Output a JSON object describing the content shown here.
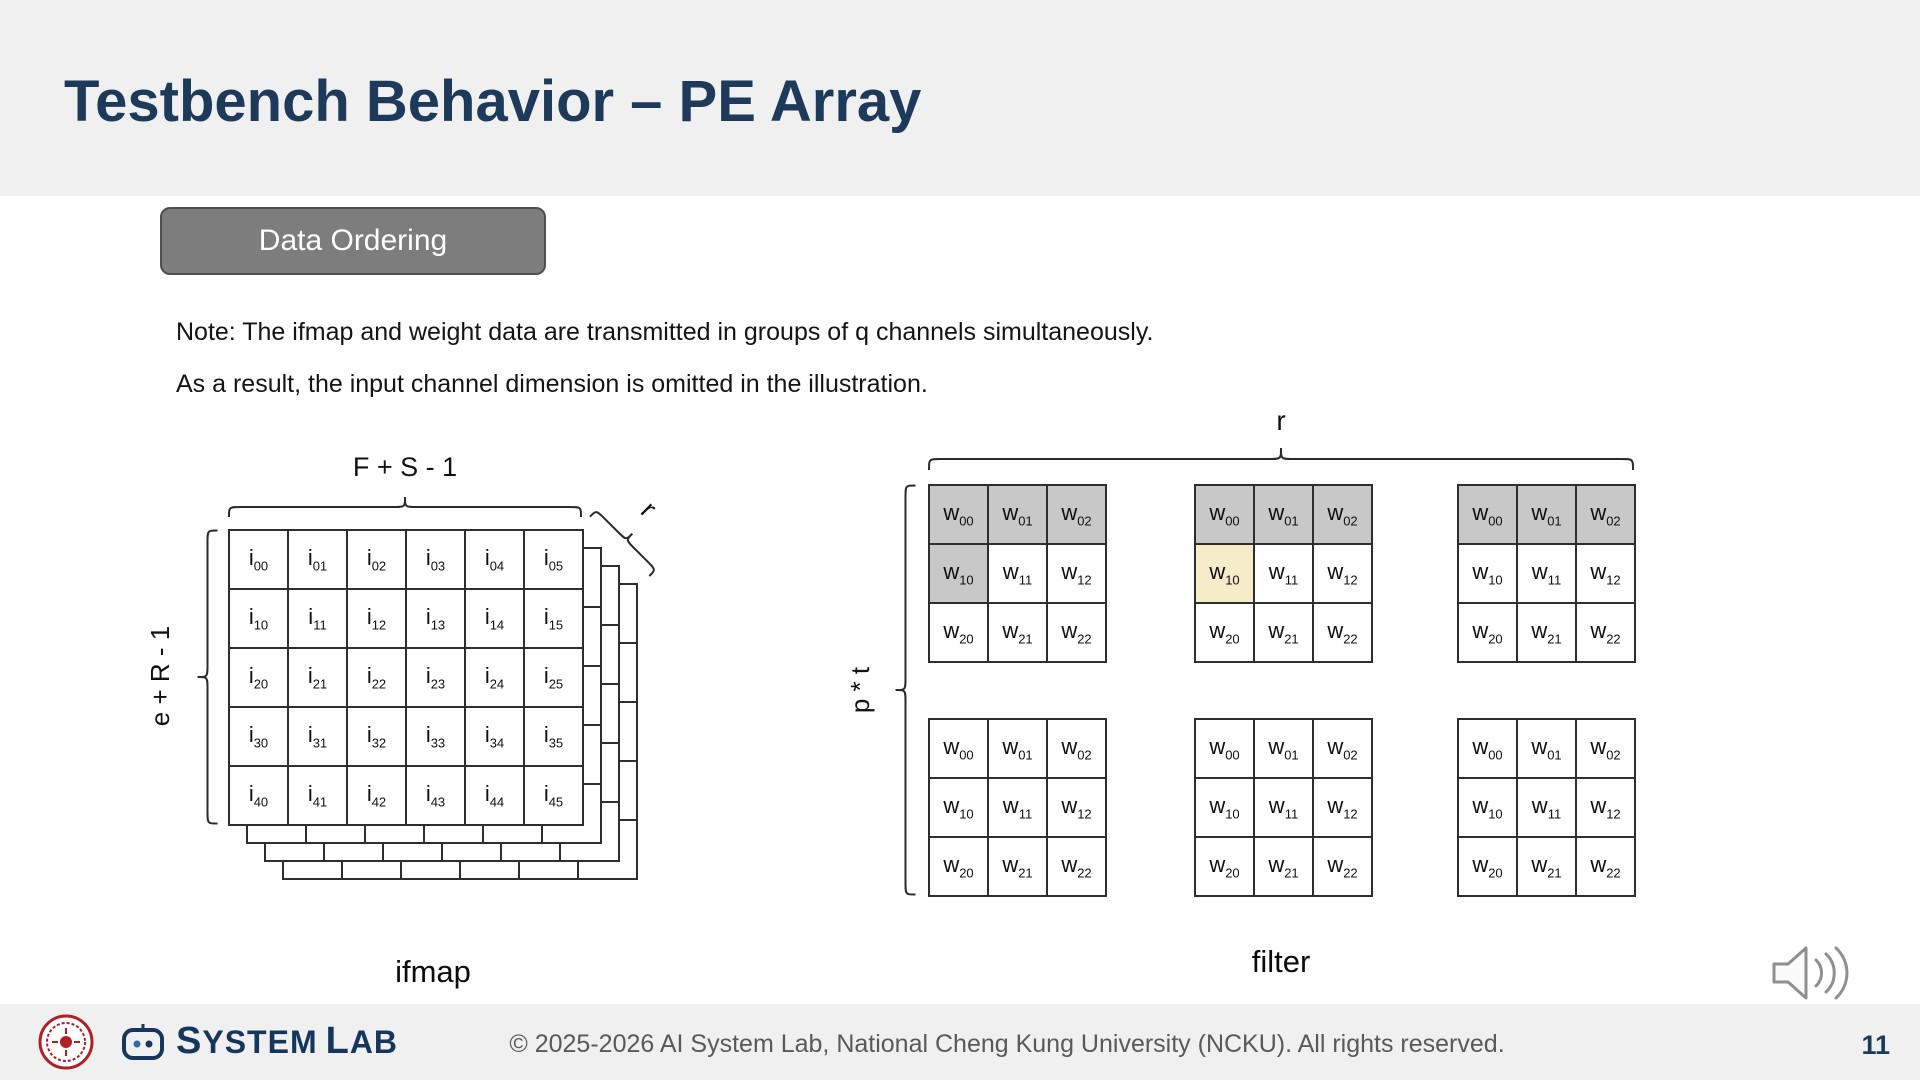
{
  "slide": {
    "title": "Testbench Behavior – PE Array",
    "page_number": "11"
  },
  "tag": {
    "label": "Data Ordering"
  },
  "note": {
    "line1": "Note: The ifmap and weight data are transmitted in groups of q channels simultaneously.",
    "line2": "As a result, the input channel dimension is omitted in the illustration."
  },
  "ifmap": {
    "label": "ifmap",
    "top_brace_label": "F + S - 1",
    "left_brace_label": "e + R - 1",
    "depth_label": "r",
    "cells": [
      [
        "i00",
        "i01",
        "i02",
        "i03",
        "i04",
        "i05"
      ],
      [
        "i10",
        "i11",
        "i12",
        "i13",
        "i14",
        "i15"
      ],
      [
        "i20",
        "i21",
        "i22",
        "i23",
        "i24",
        "i25"
      ],
      [
        "i30",
        "i31",
        "i32",
        "i33",
        "i34",
        "i35"
      ],
      [
        "i40",
        "i41",
        "i42",
        "i43",
        "i44",
        "i45"
      ]
    ]
  },
  "filter": {
    "label": "filter",
    "top_brace_label": "r",
    "left_brace_label": "p * t",
    "cells": [
      [
        "w00",
        "w01",
        "w02"
      ],
      [
        "w10",
        "w11",
        "w12"
      ],
      [
        "w20",
        "w21",
        "w22"
      ]
    ],
    "matrices": [
      {
        "shaded": [
          "0-0",
          "0-1",
          "0-2",
          "1-0"
        ],
        "highlighted": []
      },
      {
        "shaded": [
          "0-0",
          "0-1",
          "0-2"
        ],
        "highlighted": [
          "1-0"
        ]
      },
      {
        "shaded": [
          "0-0",
          "0-1",
          "0-2"
        ],
        "highlighted": []
      },
      {
        "shaded": [],
        "highlighted": []
      },
      {
        "shaded": [],
        "highlighted": []
      },
      {
        "shaded": [],
        "highlighted": []
      }
    ]
  },
  "footer": {
    "logo_system": "SYSTEM",
    "logo_lab": "LAB",
    "copyright": "© 2025-2026 AI System Lab, National Cheng Kung University (NCKU). All rights reserved."
  },
  "icons": {
    "audio": "speaker-with-sound-waves",
    "seal": "ncku-university-seal",
    "logo": "ai-system-lab-logo"
  },
  "colors": {
    "title": "#1d3a5a",
    "tag_bg": "#7d7d7d",
    "shaded_cell": "#c8c8c8",
    "highlighted_cell": "#f6ecca",
    "band": "#f0f0f0",
    "seal_red": "#b01f24"
  }
}
